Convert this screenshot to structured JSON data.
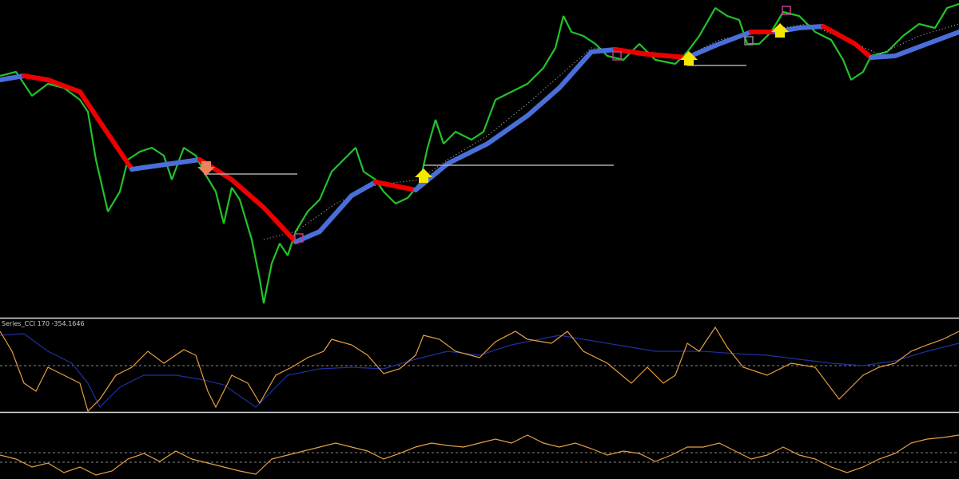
{
  "indicator_window": {
    "label": "Series_CCI 170 -354.1646"
  }
}
